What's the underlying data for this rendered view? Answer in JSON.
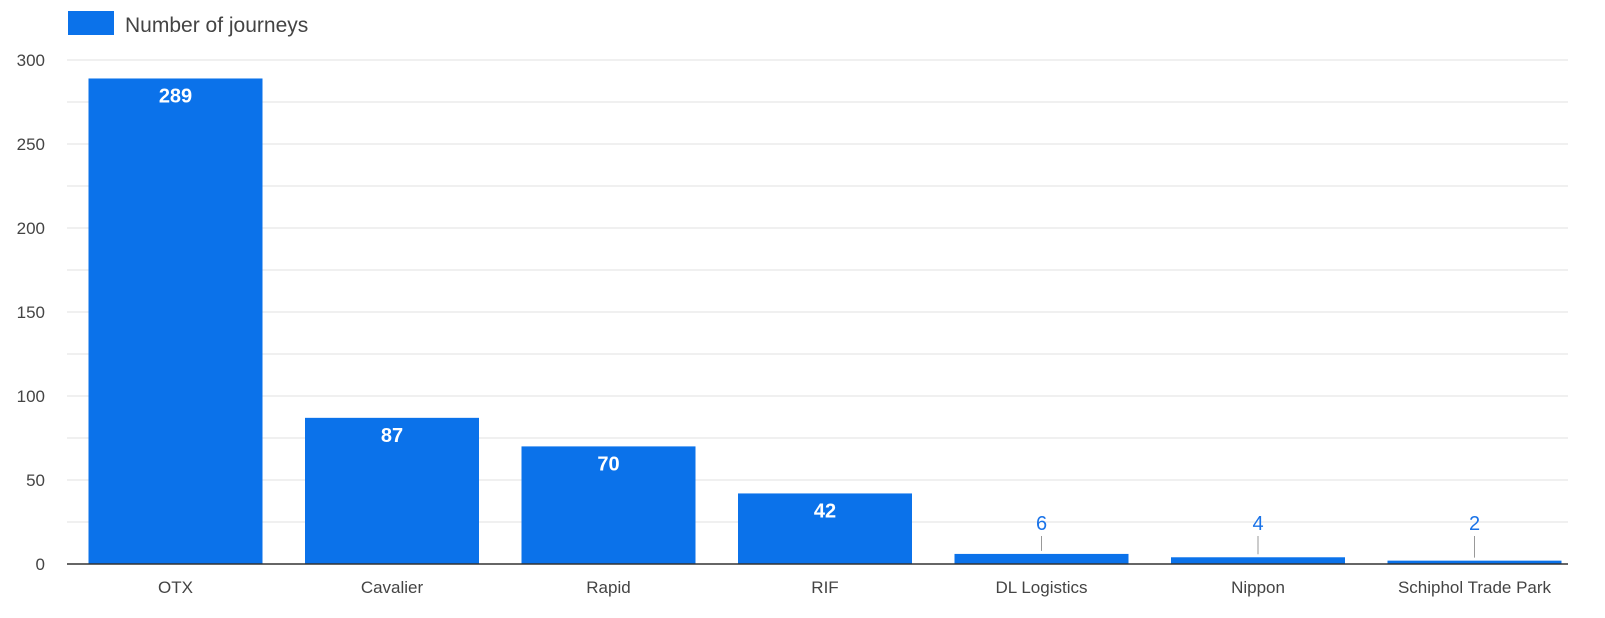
{
  "chart_data": {
    "type": "bar",
    "categories": [
      "OTX",
      "Cavalier",
      "Rapid",
      "RIF",
      "DL Logistics",
      "Nippon",
      "Schiphol Trade Park"
    ],
    "series": [
      {
        "name": "Number of journeys",
        "values": [
          289,
          87,
          70,
          42,
          6,
          4,
          2
        ],
        "color": "#0b72ea"
      }
    ],
    "title": "",
    "xlabel": "",
    "ylabel": "",
    "ylim": [
      0,
      300
    ],
    "yticks": [
      0,
      50,
      100,
      150,
      200,
      250,
      300
    ],
    "grid": true,
    "legend": "top-left",
    "colors": {
      "bar": "#0b72ea",
      "outside_label": "#1a73e8",
      "grid": "#e2e2e2",
      "axis": "#333333",
      "text": "#444444"
    }
  }
}
